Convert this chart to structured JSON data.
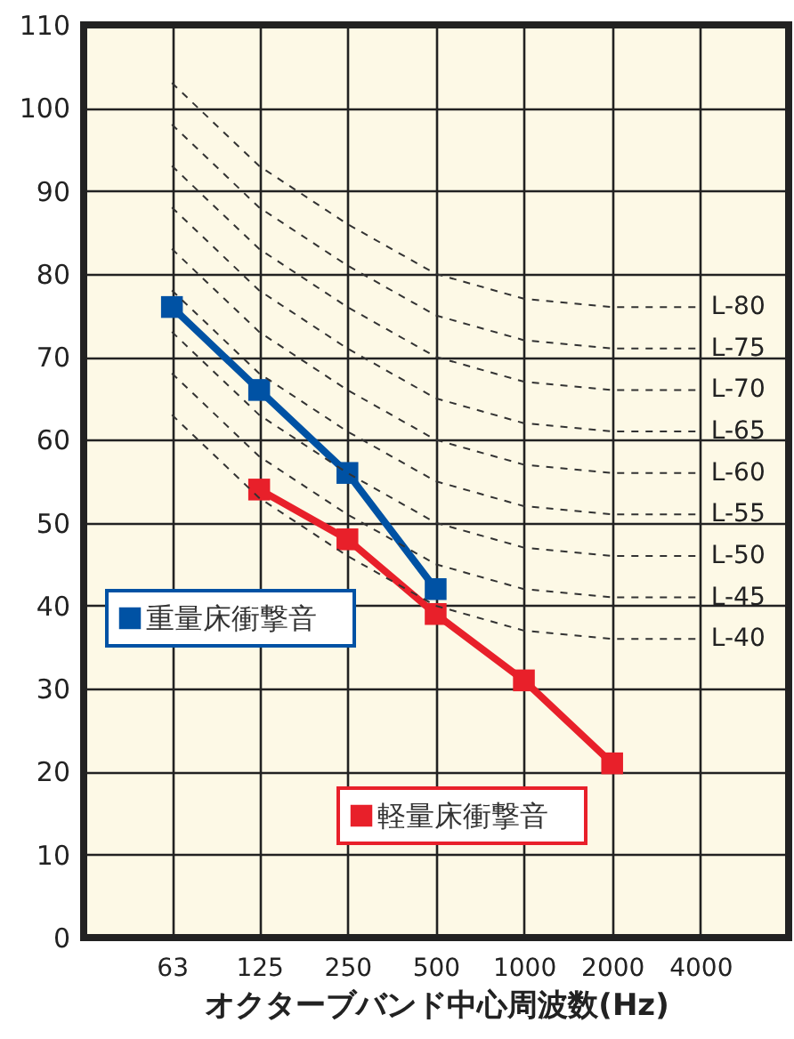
{
  "chart_data": {
    "type": "line",
    "xlabel": "オクターブバンド中心周波数(Hz)",
    "log": "x",
    "xlim": [
      31.5,
      8000
    ],
    "xticks": [
      63,
      125,
      250,
      500,
      1000,
      2000,
      4000
    ],
    "ylim": [
      0,
      110
    ],
    "yticks": [
      0,
      10,
      20,
      30,
      40,
      50,
      60,
      70,
      80,
      90,
      100,
      110
    ],
    "grid": true,
    "legend": "left",
    "marker": "square",
    "line_style": "solid",
    "series": [
      {
        "name": "重量床衝撃音",
        "color": "#0052a4",
        "x": [
          63,
          125,
          250,
          500
        ],
        "values": [
          76,
          66,
          56,
          42
        ]
      },
      {
        "name": "軽量床衝撃音",
        "color": "#e8202a",
        "x": [
          125,
          250,
          500,
          1000,
          2000
        ],
        "values": [
          54,
          48,
          39,
          31,
          21
        ]
      },
      {
        "name": "L-80",
        "color": "#333333",
        "marker": "none",
        "line_style": "dashed",
        "x": [
          63,
          125,
          250,
          500,
          1000,
          2000,
          4000
        ],
        "values": [
          103,
          93,
          86,
          80,
          77,
          76,
          76
        ]
      },
      {
        "name": "L-75",
        "color": "#333333",
        "marker": "none",
        "line_style": "dashed",
        "x": [
          63,
          125,
          250,
          500,
          1000,
          2000,
          4000
        ],
        "values": [
          98,
          88,
          81,
          75,
          72,
          71,
          71
        ]
      },
      {
        "name": "L-70",
        "color": "#333333",
        "marker": "none",
        "line_style": "dashed",
        "x": [
          63,
          125,
          250,
          500,
          1000,
          2000,
          4000
        ],
        "values": [
          93,
          83,
          76,
          70,
          67,
          66,
          66
        ]
      },
      {
        "name": "L-65",
        "color": "#333333",
        "marker": "none",
        "line_style": "dashed",
        "x": [
          63,
          125,
          250,
          500,
          1000,
          2000,
          4000
        ],
        "values": [
          88,
          78,
          71,
          65,
          62,
          61,
          61
        ]
      },
      {
        "name": "L-60",
        "color": "#333333",
        "marker": "none",
        "line_style": "dashed",
        "x": [
          63,
          125,
          250,
          500,
          1000,
          2000,
          4000
        ],
        "values": [
          83,
          73,
          66,
          60,
          57,
          56,
          56
        ]
      },
      {
        "name": "L-55",
        "color": "#333333",
        "marker": "none",
        "line_style": "dashed",
        "x": [
          63,
          125,
          250,
          500,
          1000,
          2000,
          4000
        ],
        "values": [
          78,
          68,
          61,
          55,
          52,
          51,
          51
        ]
      },
      {
        "name": "L-50",
        "color": "#333333",
        "marker": "none",
        "line_style": "dashed",
        "x": [
          63,
          125,
          250,
          500,
          1000,
          2000,
          4000
        ],
        "values": [
          73,
          63,
          56,
          50,
          47,
          46,
          46
        ]
      },
      {
        "name": "L-45",
        "color": "#333333",
        "marker": "none",
        "line_style": "dashed",
        "x": [
          63,
          125,
          250,
          500,
          1000,
          2000,
          4000
        ],
        "values": [
          68,
          58,
          51,
          45,
          42,
          41,
          41
        ]
      },
      {
        "name": "L-40",
        "color": "#333333",
        "marker": "none",
        "line_style": "dashed",
        "x": [
          63,
          125,
          250,
          500,
          1000,
          2000,
          4000
        ],
        "values": [
          63,
          53,
          46,
          40,
          37,
          36,
          36
        ]
      }
    ]
  }
}
